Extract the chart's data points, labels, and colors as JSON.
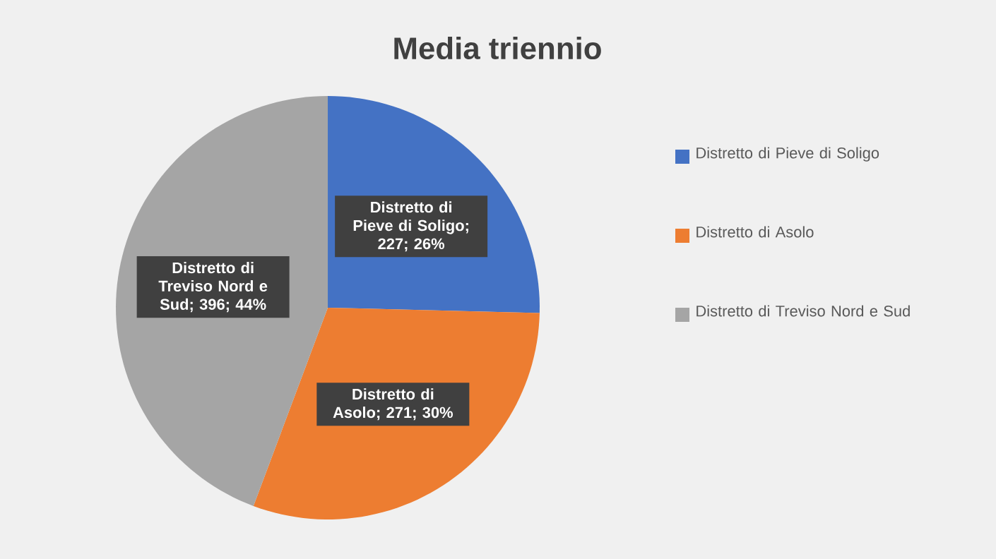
{
  "chart_data": {
    "type": "pie",
    "title": "Media triennio",
    "categories": [
      "Distretto di Pieve di Soligo",
      "Distretto di Asolo",
      "Distretto di Treviso Nord e Sud"
    ],
    "values": [
      227,
      271,
      396
    ],
    "colors": [
      "#4472c4",
      "#ed7d31",
      "#a5a5a5"
    ],
    "value_labels": [
      "Distretto di Pieve di Soligo; 227; 26%",
      "Distretto di Asolo; 271; 30%",
      "Distretto di Treviso Nord e Sud; 396; 44%"
    ],
    "legend": "right"
  }
}
